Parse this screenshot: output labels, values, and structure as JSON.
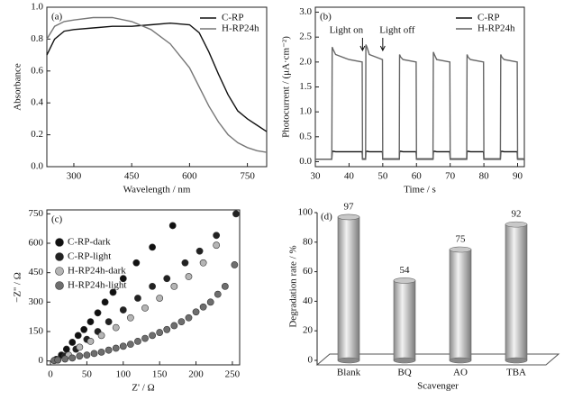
{
  "chart_data": [
    {
      "type": "line",
      "panel_label": "(a)",
      "xlabel": "Wavelength / nm",
      "ylabel": "Absorbance",
      "x": [
        230,
        250,
        275,
        300,
        350,
        400,
        450,
        500,
        550,
        600,
        625,
        650,
        675,
        700,
        725,
        750,
        775,
        800
      ],
      "series": [
        {
          "name": "C-RP",
          "color": "#111111",
          "values": [
            0.7,
            0.8,
            0.85,
            0.86,
            0.87,
            0.88,
            0.88,
            0.89,
            0.9,
            0.89,
            0.84,
            0.72,
            0.58,
            0.45,
            0.35,
            0.3,
            0.26,
            0.22
          ]
        },
        {
          "name": "H-RP24h",
          "color": "#777777",
          "values": [
            0.8,
            0.88,
            0.91,
            0.92,
            0.935,
            0.935,
            0.91,
            0.86,
            0.77,
            0.62,
            0.5,
            0.38,
            0.28,
            0.2,
            0.15,
            0.12,
            0.1,
            0.09
          ]
        }
      ],
      "xlim": [
        230,
        800
      ],
      "xticks": [
        300,
        450,
        600,
        750
      ],
      "ylim": [
        0,
        1.0
      ],
      "yticks": [
        {
          "value": 0,
          "label": "0.0"
        },
        0.2,
        0.4,
        0.6,
        0.8,
        {
          "value": 1,
          "label": "1.0"
        }
      ],
      "legend": "upper right"
    },
    {
      "type": "line",
      "panel_label": "(b)",
      "xlabel": "Time / s",
      "ylabel": "Photocurrent / (μA·cm⁻²)",
      "annotations": [
        "Light on",
        "Light off"
      ],
      "x": [
        30,
        34.9,
        35,
        35.3,
        36,
        40,
        43.9,
        44,
        44.9,
        45,
        45.3,
        46,
        49.9,
        50,
        54.9,
        55,
        55.3,
        56,
        59.9,
        60,
        64.9,
        65,
        65.3,
        66,
        69.9,
        70,
        74.9,
        75,
        75.3,
        76,
        79.9,
        80,
        84.9,
        85,
        85.3,
        86,
        89.9,
        90,
        92
      ],
      "series": [
        {
          "name": "C-RP",
          "color": "#111111",
          "values": [
            0.05,
            0.05,
            0.2,
            0.21,
            0.2,
            0.2,
            0.2,
            0.05,
            0.05,
            0.2,
            0.21,
            0.2,
            0.2,
            0.05,
            0.05,
            0.2,
            0.21,
            0.2,
            0.2,
            0.05,
            0.05,
            0.2,
            0.21,
            0.2,
            0.2,
            0.05,
            0.05,
            0.2,
            0.21,
            0.2,
            0.2,
            0.05,
            0.05,
            0.2,
            0.21,
            0.2,
            0.2,
            0.05,
            0.05
          ]
        },
        {
          "name": "H-RP24h",
          "color": "#666666",
          "values": [
            0.05,
            0.05,
            2.3,
            2.25,
            2.15,
            2.05,
            2.0,
            0.06,
            0.06,
            2.35,
            2.3,
            2.15,
            2.05,
            0.06,
            0.06,
            2.15,
            2.1,
            2.05,
            2.0,
            0.06,
            0.06,
            2.2,
            2.15,
            2.05,
            2.0,
            0.06,
            0.06,
            2.15,
            2.1,
            2.05,
            2.0,
            0.06,
            0.06,
            2.15,
            2.1,
            2.05,
            2.0,
            0.06,
            0.06
          ]
        }
      ],
      "xlim": [
        30,
        92
      ],
      "xticks": [
        30,
        40,
        50,
        60,
        70,
        80,
        90
      ],
      "ylim": [
        -0.1,
        3.1
      ],
      "yticks": [
        {
          "value": 0,
          "label": "0.0"
        },
        0.5,
        {
          "value": 1,
          "label": "1.0"
        },
        1.5,
        {
          "value": 2,
          "label": "2.0"
        },
        2.5,
        {
          "value": 3,
          "label": "3.0"
        }
      ],
      "legend": "upper right"
    },
    {
      "type": "scatter",
      "panel_label": "(c)",
      "xlabel": "Z' / Ω",
      "ylabel": "−Z'' / Ω",
      "series": [
        {
          "name": "C-RP-dark",
          "color": "#111111",
          "x": [
            8,
            15,
            22,
            30,
            38,
            46,
            55,
            65,
            75,
            86,
            100,
            118,
            140,
            168
          ],
          "values": [
            8,
            30,
            60,
            95,
            130,
            160,
            200,
            245,
            300,
            350,
            420,
            500,
            580,
            690
          ]
        },
        {
          "name": "C-RP-light",
          "color": "#222222",
          "x": [
            10,
            20,
            35,
            50,
            65,
            80,
            100,
            120,
            140,
            160,
            185,
            205,
            228,
            255
          ],
          "values": [
            5,
            25,
            60,
            110,
            150,
            200,
            260,
            320,
            380,
            420,
            500,
            560,
            640,
            750
          ]
        },
        {
          "name": "H-RP24h-dark",
          "color": "#b5b5b5",
          "x": [
            10,
            25,
            40,
            55,
            70,
            90,
            110,
            130,
            150,
            170,
            190,
            210,
            228
          ],
          "values": [
            5,
            30,
            70,
            100,
            130,
            170,
            220,
            270,
            320,
            380,
            430,
            500,
            590
          ]
        },
        {
          "name": "H-RP24h-light",
          "color": "#6e6e6e",
          "x": [
            5,
            10,
            20,
            30,
            40,
            50,
            60,
            70,
            80,
            90,
            100,
            110,
            120,
            130,
            140,
            150,
            160,
            170,
            180,
            190,
            200,
            210,
            220,
            230,
            240,
            253
          ],
          "values": [
            2,
            5,
            10,
            15,
            25,
            30,
            38,
            45,
            55,
            65,
            75,
            85,
            100,
            115,
            130,
            145,
            160,
            180,
            200,
            220,
            250,
            275,
            300,
            340,
            380,
            490
          ]
        }
      ],
      "xlim": [
        -5,
        260
      ],
      "xticks": [
        0,
        50,
        100,
        150,
        200,
        250
      ],
      "ylim": [
        -20,
        770
      ],
      "yticks": [
        0,
        150,
        300,
        450,
        600,
        750
      ],
      "legend": "upper left"
    },
    {
      "type": "bar",
      "panel_label": "(d)",
      "xlabel": "Scavenger",
      "ylabel": "Degradation rate / %",
      "categories": [
        "Blank",
        "BQ",
        "AO",
        "TBA"
      ],
      "values": [
        97,
        54,
        75,
        92
      ],
      "color": "#c8c8c8",
      "ylim": [
        0,
        100
      ],
      "yticks": [
        0,
        20,
        40,
        60,
        80,
        100
      ]
    }
  ]
}
